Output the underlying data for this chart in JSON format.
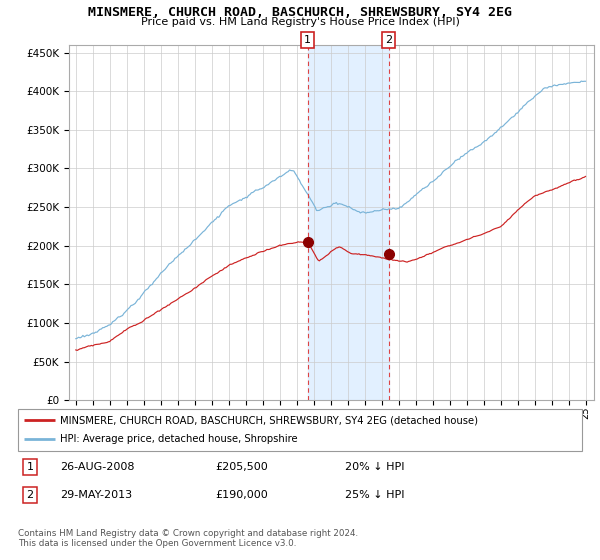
{
  "title": "MINSMERE, CHURCH ROAD, BASCHURCH, SHREWSBURY, SY4 2EG",
  "subtitle": "Price paid vs. HM Land Registry's House Price Index (HPI)",
  "ylim": [
    0,
    460000
  ],
  "yticks": [
    0,
    50000,
    100000,
    150000,
    200000,
    250000,
    300000,
    350000,
    400000,
    450000
  ],
  "hpi_color": "#7ab4d8",
  "price_color": "#cc2222",
  "marker_color": "#8b0000",
  "vline_color": "#dd4444",
  "shade_color": "#ddeeff",
  "event1_year": 2008.65,
  "event1_price": 205500,
  "event2_year": 2013.41,
  "event2_price": 190000,
  "legend_line1": "MINSMERE, CHURCH ROAD, BASCHURCH, SHREWSBURY, SY4 2EG (detached house)",
  "legend_line2": "HPI: Average price, detached house, Shropshire",
  "table_row1": [
    "1",
    "26-AUG-2008",
    "£205,500",
    "20% ↓ HPI"
  ],
  "table_row2": [
    "2",
    "29-MAY-2013",
    "£190,000",
    "25% ↓ HPI"
  ],
  "footnote1": "Contains HM Land Registry data © Crown copyright and database right 2024.",
  "footnote2": "This data is licensed under the Open Government Licence v3.0."
}
